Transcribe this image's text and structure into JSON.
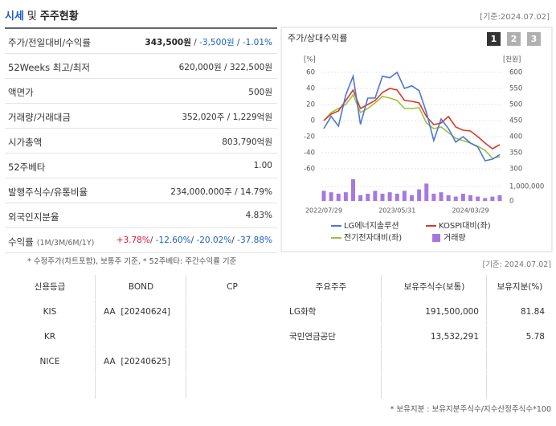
{
  "header": {
    "title_parts": [
      "시세",
      "및",
      "주주현황"
    ],
    "date": "[기준:2024.07.02]"
  },
  "summary": {
    "rows": [
      {
        "label": "주가/전일대비/수익률",
        "value": [
          {
            "text": "343,500원",
            "color": "#222222",
            "bold": true
          },
          {
            "text": " / ",
            "color": "#444444"
          },
          {
            "text": "-3,500원",
            "color": "#1b5fc1"
          },
          {
            "text": " / ",
            "color": "#444444"
          },
          {
            "text": "-1.01%",
            "color": "#1b5fc1"
          }
        ]
      },
      {
        "label": "52Weeks 최고/최저",
        "value": [
          {
            "text": "620,000원 / 322,500원",
            "color": "#333333"
          }
        ]
      },
      {
        "label": "액면가",
        "value": [
          {
            "text": "500원",
            "color": "#333333"
          }
        ]
      },
      {
        "label": "거래량/거래대금",
        "value": [
          {
            "text": "352,020주 / 1,229억원",
            "color": "#333333"
          }
        ]
      },
      {
        "label": "시가총액",
        "value": [
          {
            "text": "803,790억원",
            "color": "#333333"
          }
        ]
      },
      {
        "label": "52주베타",
        "value": [
          {
            "text": "1.00",
            "color": "#333333"
          }
        ]
      },
      {
        "label": "발행주식수/유통비율",
        "value": [
          {
            "text": "234,000,000주 / 14.79%",
            "color": "#333333"
          }
        ]
      },
      {
        "label": "외국인지분율",
        "value": [
          {
            "text": "4.83%",
            "color": "#333333"
          }
        ]
      },
      {
        "label": "수익률",
        "sublabel": "(1M/3M/6M/1Y)",
        "value": [
          {
            "text": "+3.78%",
            "color": "#e0142b"
          },
          {
            "text": "/ ",
            "color": "#444444"
          },
          {
            "text": "-12.60%",
            "color": "#1b5fc1"
          },
          {
            "text": "/ ",
            "color": "#444444"
          },
          {
            "text": "-20.02%",
            "color": "#1b5fc1"
          },
          {
            "text": "/ ",
            "color": "#444444"
          },
          {
            "text": "-37.88%",
            "color": "#1b5fc1"
          }
        ]
      }
    ]
  },
  "chart_data": {
    "type": "line",
    "title": "주가/상대수익률",
    "buttons": [
      "1",
      "2",
      "3"
    ],
    "y_unit": "[%]",
    "y2_unit": "[천원]",
    "categories": [
      "2022/07/29",
      null,
      null,
      null,
      null,
      null,
      null,
      null,
      null,
      null,
      "2023/05/31",
      null,
      null,
      null,
      null,
      null,
      null,
      null,
      null,
      null,
      "2024/03/29",
      null,
      null,
      null,
      null
    ],
    "series": [
      {
        "name": "거래량",
        "type": "bar",
        "axis": "y3",
        "color": "#a779dd",
        "values": [
          700000,
          600000,
          500000,
          600000,
          1500000,
          400000,
          500000,
          700000,
          500000,
          600000,
          500000,
          700000,
          400000,
          800000,
          1200000,
          500000,
          600000,
          400000,
          300000,
          500000,
          400000,
          300000,
          200000,
          300000,
          400000
        ]
      },
      {
        "name": "전기전자대비(좌)",
        "color": "#9ac43a",
        "values": [
          0,
          10,
          15,
          20,
          32,
          10,
          15,
          22,
          30,
          28,
          25,
          15,
          15,
          16,
          -3,
          -10,
          -8,
          -15,
          -22,
          -25,
          -28,
          -32,
          -37,
          -47,
          -45
        ]
      },
      {
        "name": "KOSPI대비(좌)",
        "color": "#d93a2b",
        "values": [
          0,
          8,
          12,
          25,
          38,
          15,
          20,
          25,
          35,
          40,
          38,
          25,
          24,
          22,
          5,
          -5,
          -3,
          5,
          -8,
          -12,
          -13,
          -20,
          -28,
          -35,
          -30
        ]
      },
      {
        "name": "LG에너지솔루션",
        "axis": "y2",
        "color": "#4a76d6",
        "values": [
          425,
          463,
          433,
          530,
          588,
          438,
          520,
          520,
          588,
          583,
          600,
          550,
          558,
          543,
          475,
          388,
          455,
          425,
          383,
          400,
          380,
          368,
          325,
          330,
          344
        ]
      }
    ],
    "ylim": [
      -60,
      70
    ],
    "yticks": [
      60,
      40,
      20,
      0,
      -20,
      -40,
      -60
    ],
    "y2lim": [
      300,
      625
    ],
    "y2ticks": [
      600,
      550,
      500,
      450,
      400,
      350,
      300
    ],
    "y3lim": [
      0,
      1500000
    ],
    "y3ticks": [
      0,
      {
        "value": 1000000,
        "label": "1,000,000"
      }
    ],
    "grid": true,
    "legend": "bottom"
  },
  "notes": {
    "left": "* 수정주가(차트포함), 보통주 기준, * 52주베타: 주간수익률 기준",
    "right": "[기준: 2024.07.02]",
    "bottom": "* 보유지분 : 보유지분주식수/지수산정주식수*100"
  },
  "credit_table": {
    "header": [
      "신용등급",
      "BOND",
      "CP"
    ],
    "rows": [
      [
        "KIS",
        "AA  [20240624]",
        null
      ],
      [
        "KR",
        null,
        null
      ],
      [
        "NICE",
        "AA  [20240625]",
        null
      ]
    ]
  },
  "holders_table": {
    "header": [
      "주요주주",
      "보유주식수(보통)",
      "보유지분(%)"
    ],
    "rows": [
      [
        "LG화학",
        "191,500,000",
        "81.84"
      ],
      [
        "국민연금공단",
        "13,532,291",
        "5.78"
      ]
    ]
  }
}
